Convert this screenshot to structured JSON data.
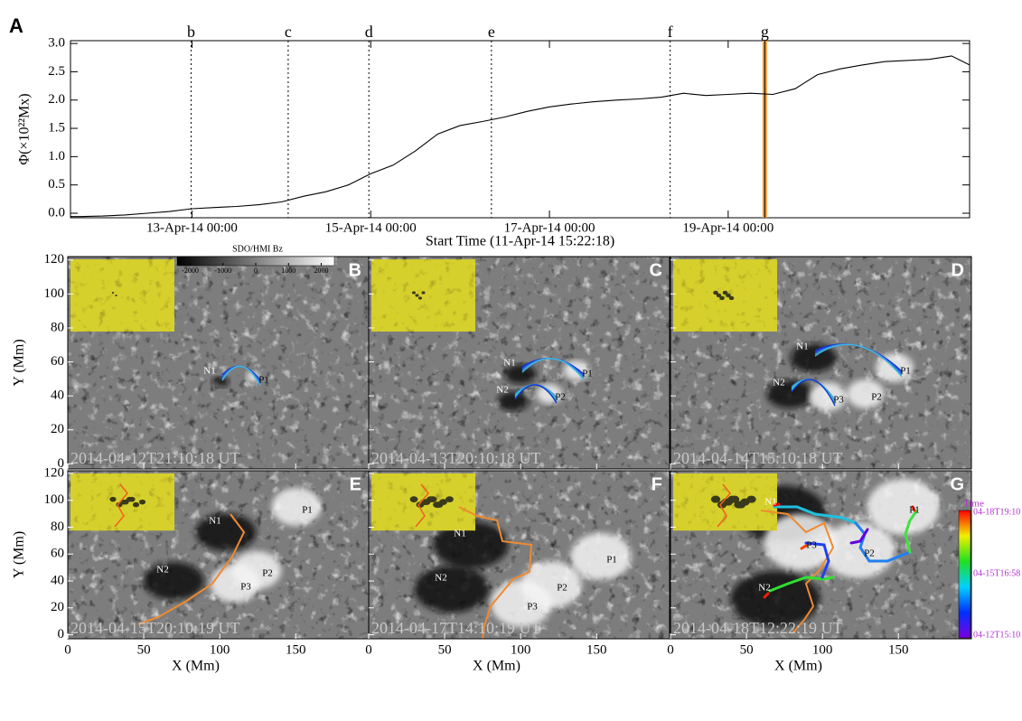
{
  "chart_data": [
    {
      "type": "line",
      "panel_label": "A",
      "ylabel": "Φ(×10²²Mx)",
      "xlabel": "Start Time (11-Apr-14 15:22:18)",
      "xlim": [
        "2014-04-11T15:22",
        "2014-04-21T16:50"
      ],
      "ylim": [
        -0.08,
        3.05
      ],
      "xticks": [
        {
          "value": "2014-04-13T00:00",
          "label": "13-Apr-14 00:00"
        },
        {
          "value": "2014-04-15T00:00",
          "label": "15-Apr-14 00:00"
        },
        {
          "value": "2014-04-17T00:00",
          "label": "17-Apr-14 00:00"
        },
        {
          "value": "2014-04-19T00:00",
          "label": "19-Apr-14 00:00"
        }
      ],
      "yticks": [
        {
          "value": 0,
          "label": "0.0"
        },
        0.5,
        {
          "value": 1,
          "label": "1.0"
        },
        1.5,
        {
          "value": 2,
          "label": "2.0"
        },
        2.5,
        {
          "value": 3,
          "label": "3.0"
        }
      ],
      "color": "#000000",
      "x": [
        "2014-04-11T15:22",
        "2014-04-11T18:00",
        "2014-04-12T00:00",
        "2014-04-12T06:00",
        "2014-04-12T12:00",
        "2014-04-12T18:00",
        "2014-04-13T00:00",
        "2014-04-13T06:00",
        "2014-04-13T12:00",
        "2014-04-13T18:00",
        "2014-04-14T00:00",
        "2014-04-14T06:00",
        "2014-04-14T12:00",
        "2014-04-14T18:00",
        "2014-04-15T00:00",
        "2014-04-15T06:00",
        "2014-04-15T12:00",
        "2014-04-15T18:00",
        "2014-04-16T00:00",
        "2014-04-16T06:00",
        "2014-04-16T12:00",
        "2014-04-16T18:00",
        "2014-04-17T00:00",
        "2014-04-17T06:00",
        "2014-04-17T12:00",
        "2014-04-17T18:00",
        "2014-04-18T00:00",
        "2014-04-18T06:00",
        "2014-04-18T12:00",
        "2014-04-18T18:00",
        "2014-04-19T00:00",
        "2014-04-19T06:00",
        "2014-04-19T12:00",
        "2014-04-19T18:00",
        "2014-04-20T00:00",
        "2014-04-20T06:00",
        "2014-04-20T12:00",
        "2014-04-20T18:00",
        "2014-04-21T00:00",
        "2014-04-21T06:00",
        "2014-04-21T12:00",
        "2014-04-21T16:50"
      ],
      "values": [
        -0.06,
        -0.06,
        -0.05,
        -0.03,
        0.0,
        0.03,
        0.08,
        0.1,
        0.12,
        0.15,
        0.2,
        0.3,
        0.38,
        0.5,
        0.7,
        0.85,
        1.1,
        1.4,
        1.55,
        1.62,
        1.7,
        1.8,
        1.88,
        1.93,
        1.97,
        2.0,
        2.02,
        2.05,
        2.12,
        2.08,
        2.1,
        2.12,
        2.1,
        2.2,
        2.45,
        2.55,
        2.62,
        2.68,
        2.7,
        2.72,
        2.78,
        2.62
      ],
      "markers": [
        {
          "x": "2014-04-12T23:45",
          "label": "b"
        },
        {
          "x": "2014-04-14T01:50",
          "label": "c"
        },
        {
          "x": "2014-04-14T23:30",
          "label": "d"
        },
        {
          "x": "2014-04-16T08:25",
          "label": "e"
        },
        {
          "x": "2014-04-18T08:25",
          "label": "f"
        },
        {
          "x": "2014-04-19T09:50",
          "label": "g",
          "color": "#f4a040"
        }
      ]
    },
    {
      "type": "magnetogram",
      "xlabel": "X (Mm)",
      "ylabel": "Y (Mm)",
      "xlim": [
        0,
        198
      ],
      "ylim": [
        -3,
        122
      ],
      "xticks": [
        0,
        50,
        100,
        150
      ],
      "yticks": [
        0,
        20,
        40,
        60,
        80,
        100,
        120
      ],
      "colorbar": {
        "label": "SDO/HMI Bz",
        "lim": [
          -2400,
          2400
        ],
        "ticks": [
          -2000,
          -1000,
          0,
          1000,
          2000
        ]
      },
      "time_colorbar": {
        "label": "Time",
        "labels": [
          "04-18T19:10",
          "04-15T16:58",
          "04-12T15:10"
        ]
      },
      "panels": [
        {
          "letter": "B",
          "timestamp": "2014-04-12T21:10:18 UT",
          "spots": [
            "N1",
            "P1"
          ]
        },
        {
          "letter": "C",
          "timestamp": "2014-04-13T20:10:18 UT",
          "spots": [
            "N1",
            "P1",
            "N2",
            "P2"
          ]
        },
        {
          "letter": "D",
          "timestamp": "2014-04-14T15:10:18 UT",
          "spots": [
            "N1",
            "P1",
            "N2",
            "P3",
            "P2"
          ]
        },
        {
          "letter": "E",
          "timestamp": "2014-04-15T20:10:19 UT",
          "spots": [
            "N1",
            "P1",
            "N2",
            "P2",
            "P3"
          ]
        },
        {
          "letter": "F",
          "timestamp": "2014-04-17T14:10:19 UT",
          "spots": [
            "N1",
            "P1",
            "N2",
            "P2",
            "P3"
          ]
        },
        {
          "letter": "G",
          "timestamp": "2014-04-18T12:22:19 UT",
          "spots": [
            "N1",
            "P1",
            "N2",
            "P2",
            "P3"
          ]
        }
      ]
    }
  ]
}
